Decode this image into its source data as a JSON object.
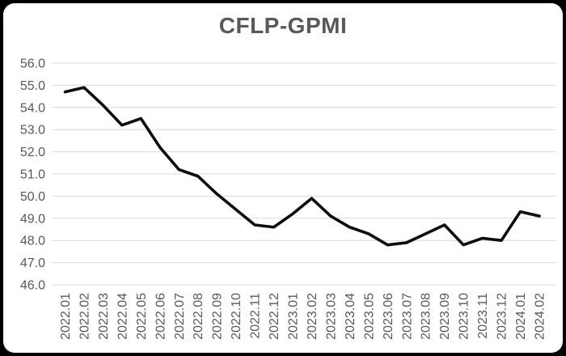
{
  "chart_data": {
    "type": "line",
    "title": "CFLP-GPMI",
    "categories": [
      "2022.01",
      "2022.02",
      "2022.03",
      "2022.04",
      "2022.05",
      "2022.06",
      "2022.07",
      "2022.08",
      "2022.09",
      "2022.10",
      "2022.11",
      "2022.12",
      "2023.01",
      "2023.02",
      "2023.03",
      "2023.04",
      "2023.05",
      "2023.06",
      "2023.07",
      "2023.08",
      "2023.09",
      "2023.10",
      "2023.11",
      "2023.12",
      "2024.01",
      "2024.02"
    ],
    "series": [
      {
        "name": "CFLP-GPMI",
        "values": [
          54.7,
          54.9,
          54.1,
          53.2,
          53.5,
          52.2,
          51.2,
          50.9,
          50.1,
          49.4,
          48.7,
          48.6,
          49.2,
          49.9,
          49.1,
          48.6,
          48.3,
          47.8,
          47.9,
          48.3,
          48.7,
          47.8,
          48.1,
          48.0,
          49.3,
          49.1
        ]
      }
    ],
    "xlabel": "",
    "ylabel": "",
    "ylim": [
      46.0,
      56.0
    ],
    "ytick_step": 1.0,
    "ytick_labels": [
      "56.0",
      "55.0",
      "54.0",
      "53.0",
      "52.0",
      "51.0",
      "50.0",
      "49.0",
      "48.0",
      "47.0",
      "46.0"
    ],
    "grid": "horizontal",
    "legend": "none",
    "colors": {
      "line": "#0d0d0d",
      "grid": "#d9d9d9",
      "tick_label": "#595959",
      "title": "#595959",
      "panel_background": "#ffffff",
      "frame_background": "#000000"
    }
  }
}
